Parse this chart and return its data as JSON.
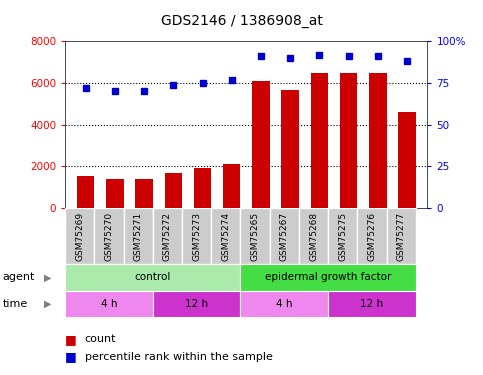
{
  "title": "GDS2146 / 1386908_at",
  "samples": [
    "GSM75269",
    "GSM75270",
    "GSM75271",
    "GSM75272",
    "GSM75273",
    "GSM75274",
    "GSM75265",
    "GSM75267",
    "GSM75268",
    "GSM75275",
    "GSM75276",
    "GSM75277"
  ],
  "counts": [
    1550,
    1380,
    1420,
    1700,
    1900,
    2100,
    6100,
    5650,
    6500,
    6500,
    6500,
    4600
  ],
  "percentiles": [
    72,
    70,
    70,
    74,
    75,
    77,
    91,
    90,
    92,
    91,
    91,
    88
  ],
  "ylim_left": [
    0,
    8000
  ],
  "ylim_right": [
    0,
    100
  ],
  "yticks_left": [
    0,
    2000,
    4000,
    6000,
    8000
  ],
  "yticks_right": [
    0,
    25,
    50,
    75,
    100
  ],
  "bar_color": "#cc0000",
  "dot_color": "#0000cc",
  "agent_groups": [
    {
      "label": "control",
      "start": 0,
      "end": 6,
      "color": "#aaeaaa"
    },
    {
      "label": "epidermal growth factor",
      "start": 6,
      "end": 12,
      "color": "#44dd44"
    }
  ],
  "time_groups": [
    {
      "label": "4 h",
      "start": 0,
      "end": 3,
      "color": "#ee88ee"
    },
    {
      "label": "12 h",
      "start": 3,
      "end": 6,
      "color": "#cc33cc"
    },
    {
      "label": "4 h",
      "start": 6,
      "end": 9,
      "color": "#ee88ee"
    },
    {
      "label": "12 h",
      "start": 9,
      "end": 12,
      "color": "#cc33cc"
    }
  ],
  "legend_count_color": "#cc0000",
  "legend_dot_color": "#0000cc",
  "sample_bg_color": "#cccccc",
  "plot_bg_color": "#ffffff"
}
